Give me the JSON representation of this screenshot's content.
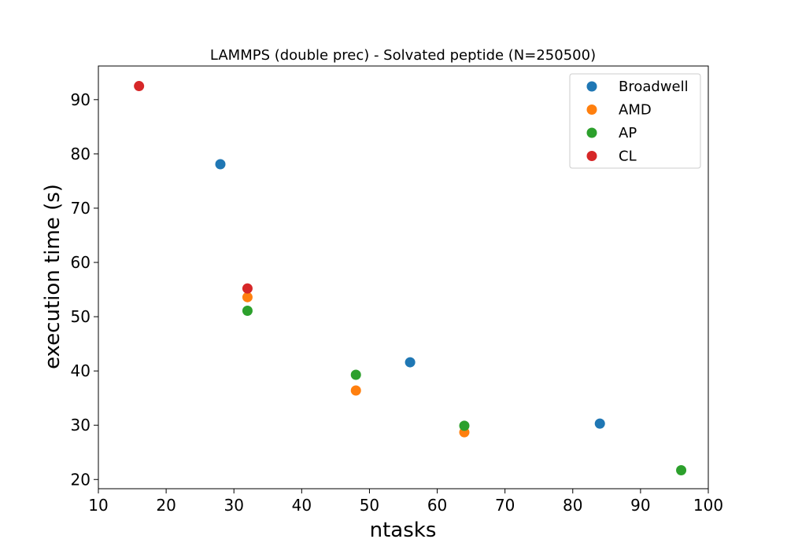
{
  "chart_data": {
    "type": "scatter",
    "title": "LAMMPS (double prec) - Solvated peptide (N=250500)",
    "xlabel": "ntasks",
    "ylabel": "execution time (s)",
    "xlim": [
      10,
      100
    ],
    "ylim": [
      18.3,
      96.2
    ],
    "xticks": [
      10,
      20,
      30,
      40,
      50,
      60,
      70,
      80,
      90,
      100
    ],
    "yticks": [
      20,
      30,
      40,
      50,
      60,
      70,
      80,
      90
    ],
    "grid": false,
    "legend_position": "top-right",
    "series": [
      {
        "name": "Broadwell",
        "color": "#1f77b4",
        "x": [
          28,
          56,
          84
        ],
        "y": [
          78.1,
          41.6,
          30.3
        ]
      },
      {
        "name": "AMD",
        "color": "#ff7f0e",
        "x": [
          32,
          48,
          64
        ],
        "y": [
          53.6,
          36.4,
          28.7
        ]
      },
      {
        "name": "AP",
        "color": "#2ca02c",
        "x": [
          32,
          48,
          64,
          96
        ],
        "y": [
          51.1,
          39.3,
          29.9,
          21.7
        ]
      },
      {
        "name": "CL",
        "color": "#d62728",
        "x": [
          16,
          32
        ],
        "y": [
          92.5,
          55.2
        ]
      }
    ]
  }
}
